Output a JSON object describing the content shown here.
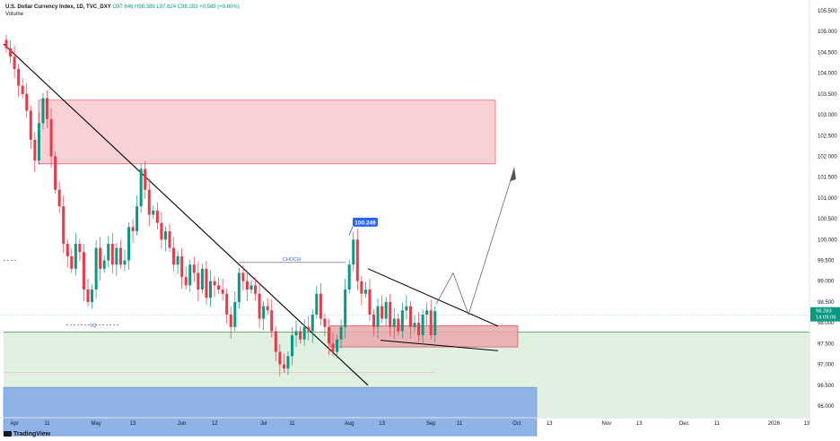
{
  "legend": {
    "symbol": "U.S. Dollar Currency Index, 1D, TVC_DXY",
    "ohlc": "O97.646  H98.389  L97.624  C98.283  +0.589 (+0.60%)",
    "volume": "Volume"
  },
  "logo": "TradingView",
  "colors": {
    "up": "#089981",
    "down": "#f23645",
    "supply_zone": "#f7c5cb",
    "demand_zone": "#dcefdc",
    "blue_zone": "#8fb3e6",
    "label_blue": "#2962ff"
  },
  "chart_data": {
    "type": "candlestick",
    "title": "U.S. Dollar Currency Index, 1D, TVC_DXY",
    "y_axis": {
      "side": "right",
      "range": [
        95.6,
        105.3
      ],
      "ticks": [
        "105.500",
        "105.000",
        "104.500",
        "104.000",
        "103.500",
        "103.000",
        "102.500",
        "102.000",
        "101.500",
        "101.000",
        "100.500",
        "100.000",
        "99.500",
        "99.000",
        "98.500",
        "98.000",
        "97.500",
        "97.000",
        "96.500",
        "96.000"
      ]
    },
    "x_axis": {
      "ticks": [
        {
          "label": "Apr",
          "x_index": 2
        },
        {
          "label": "11",
          "x_index": 10
        },
        {
          "label": "May",
          "x_index": 22
        },
        {
          "label": "13",
          "x_index": 31
        },
        {
          "label": "Jun",
          "x_index": 43
        },
        {
          "label": "12",
          "x_index": 51
        },
        {
          "label": "Jul",
          "x_index": 63
        },
        {
          "label": "11",
          "x_index": 70
        },
        {
          "label": "Aug",
          "x_index": 84
        },
        {
          "label": "13",
          "x_index": 92
        },
        {
          "label": "Sep",
          "x_index": 104
        },
        {
          "label": "11",
          "x_index": 111
        },
        {
          "label": "Oct",
          "x_index": 125
        },
        {
          "label": "13",
          "x_index": 133
        },
        {
          "label": "Nov",
          "x_index": 147
        },
        {
          "label": "13",
          "x_index": 155
        },
        {
          "label": "Dec",
          "x_index": 166
        },
        {
          "label": "11",
          "x_index": 174
        },
        {
          "label": "2026",
          "x_index": 188
        },
        {
          "label": "13",
          "x_index": 196
        }
      ]
    },
    "closes": [
      104.6,
      104.4,
      104.1,
      103.7,
      103.5,
      103.1,
      102.4,
      101.9,
      102.8,
      103.4,
      102.9,
      102.0,
      101.2,
      100.8,
      99.9,
      99.6,
      99.3,
      99.9,
      99.7,
      98.8,
      98.5,
      98.8,
      99.8,
      99.3,
      99.5,
      99.9,
      99.4,
      99.8,
      99.4,
      99.5,
      100.3,
      100.2,
      100.8,
      101.7,
      101.2,
      100.6,
      100.7,
      100.4,
      100.0,
      100.2,
      99.8,
      99.4,
      99.6,
      99.1,
      98.9,
      99.4,
      99.2,
      98.8,
      99.3,
      98.6,
      99.0,
      98.9,
      98.8,
      98.7,
      98.2,
      97.9,
      98.5,
      99.2,
      99.0,
      98.8,
      98.9,
      98.7,
      98.1,
      98.4,
      98.3,
      97.8,
      97.3,
      97.0,
      96.9,
      97.2,
      97.7,
      97.8,
      97.6,
      97.9,
      97.8,
      98.2,
      98.7,
      98.1,
      97.9,
      97.5,
      97.3,
      97.6,
      97.9,
      98.8,
      99.4,
      100.0,
      99.0,
      98.7,
      98.8,
      98.2,
      97.9,
      98.4,
      98.1,
      98.5,
      97.9,
      98.1,
      97.8,
      98.3,
      98.4,
      97.9,
      98.0,
      97.7,
      98.2,
      98.3,
      97.7,
      98.28
    ],
    "annotations": {
      "price_label": "100.249",
      "choch_label": "CHOCH",
      "lq_label": "LQ",
      "current_price": "98.283",
      "countdown": "14:09:06"
    }
  }
}
